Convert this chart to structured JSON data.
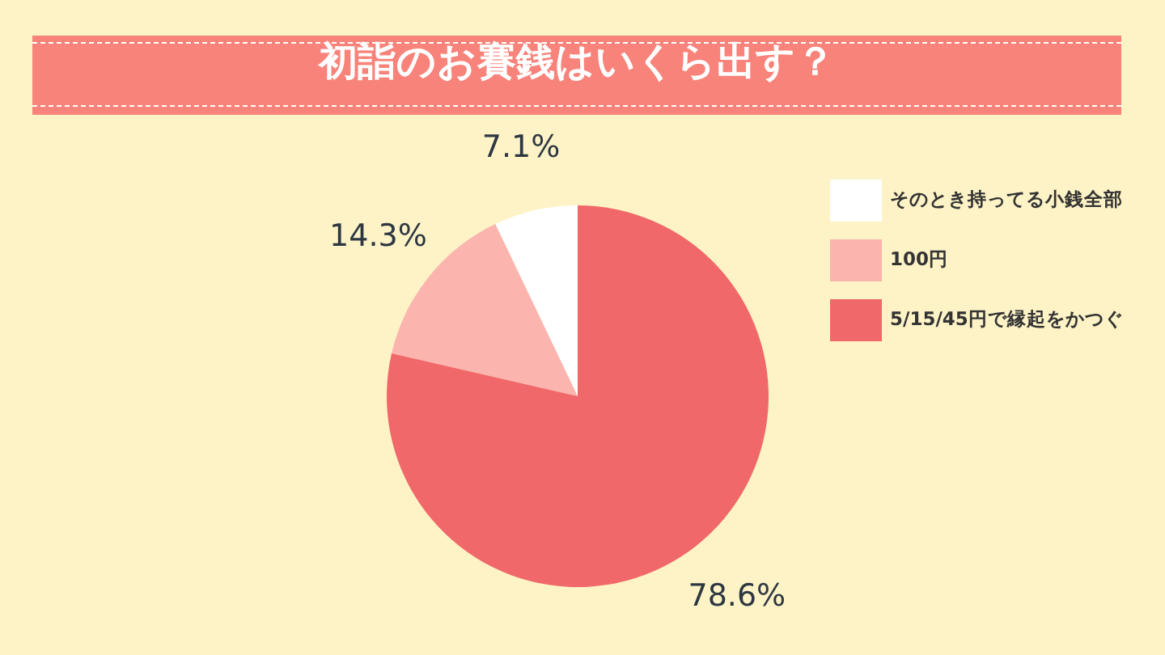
{
  "chart_data": {
    "type": "pie",
    "title": "初詣のお賽銭はいくら出す？",
    "categories": [
      "そのとき持ってる小銭全部",
      "100円",
      "5/15/45円で縁起をかつぐ"
    ],
    "values": [
      7.1,
      14.3,
      78.6
    ],
    "colors": [
      "#ffffff",
      "#fbb4ae",
      "#f0686a"
    ],
    "value_labels": [
      "7.1%",
      "14.3%",
      "78.6%"
    ],
    "legend": "right"
  }
}
